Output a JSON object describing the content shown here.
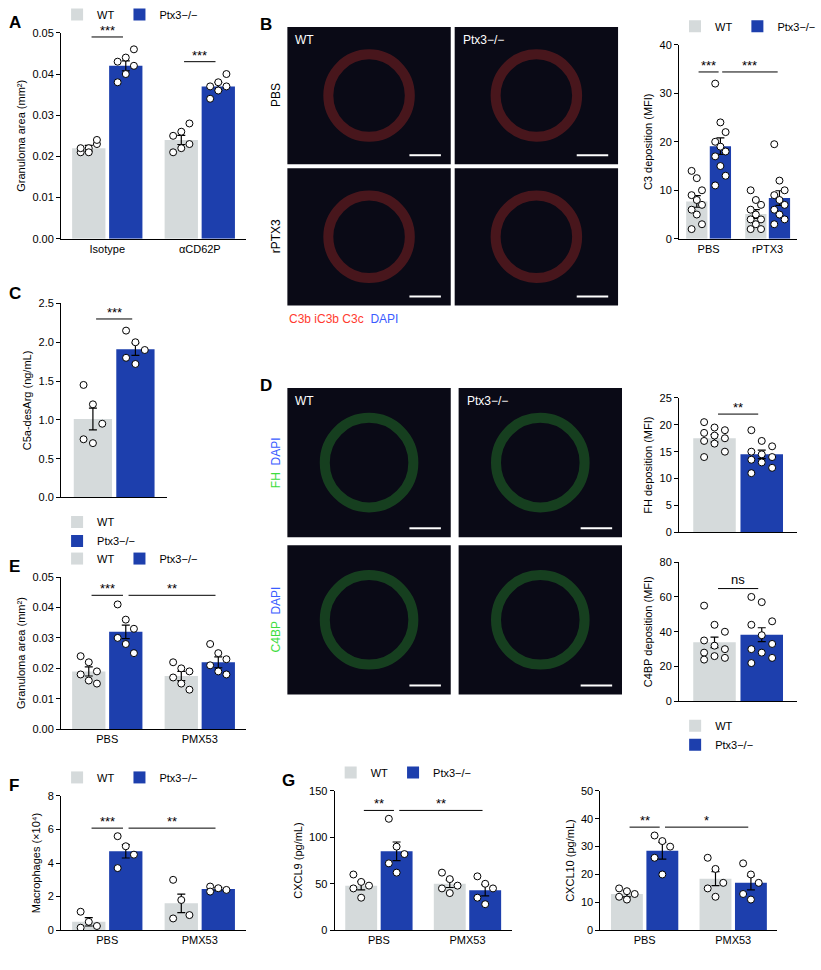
{
  "micrographs": [
    {
      "panel": "B",
      "columns": [
        "WT",
        "Ptx3−/−"
      ],
      "rows": [
        {
          "label": "PBS"
        },
        {
          "label": "rPTX3"
        }
      ],
      "stains": [
        {
          "text": "C3b iC3b C3c",
          "color": "#ff3b30"
        },
        {
          "text": "DAPI",
          "color": "#3a5cff"
        }
      ]
    },
    {
      "panel": "D",
      "columns": [
        "WT",
        "Ptx3−/−"
      ],
      "rows": [
        {
          "stains": [
            {
              "text": "FH",
              "color": "#3ddc3d"
            },
            {
              "text": "DAPI",
              "color": "#3a5cff"
            }
          ]
        },
        {
          "stains": [
            {
              "text": "C4BP",
              "color": "#3ddc3d"
            },
            {
              "text": "DAPI",
              "color": "#3a5cff"
            }
          ]
        }
      ]
    }
  ],
  "chart_data": [
    {
      "panel": "A",
      "type": "bar",
      "categories": [
        "Isotype",
        "αCD62P"
      ],
      "ylabel": "Granuloma area (mm²)",
      "ylim": [
        0,
        0.05
      ],
      "yticks": [
        {
          "value": 0,
          "label": "0.00"
        },
        0.01,
        0.02,
        0.03,
        0.04,
        0.05
      ],
      "legend": "top",
      "series": [
        {
          "name": "WT",
          "color": "#d5dadb",
          "values": [
            0.022,
            0.024
          ],
          "errors": [
            0.0007,
            0.0011
          ],
          "points": [
            [
              0.021,
              0.022,
              0.023,
              0.022,
              0.021,
              0.024
            ],
            [
              0.021,
              0.022,
              0.023,
              0.025,
              0.026,
              0.028
            ]
          ]
        },
        {
          "name": "Ptx3−/−",
          "color": "#1d3fad",
          "values": [
            0.042,
            0.037
          ],
          "errors": [
            0.0012,
            0.001
          ],
          "points": [
            [
              0.038,
              0.04,
              0.042,
              0.043,
              0.044,
              0.046
            ],
            [
              0.034,
              0.036,
              0.037,
              0.037,
              0.038,
              0.04
            ]
          ]
        }
      ],
      "significance": [
        {
          "from": [
            0,
            0
          ],
          "to": [
            0,
            1
          ],
          "label": "***"
        },
        {
          "from": [
            1,
            0
          ],
          "to": [
            1,
            1
          ],
          "label": "***"
        }
      ]
    },
    {
      "type": "bar",
      "categories": [
        "PBS",
        "rPTX3"
      ],
      "ylabel": "C3 deposition (MFI)",
      "ylim": [
        0,
        40
      ],
      "yticks": [
        0,
        10,
        20,
        30,
        40
      ],
      "legend": "top",
      "series": [
        {
          "name": "WT",
          "color": "#d5dadb",
          "values": [
            7.7,
            5.1
          ],
          "errors": [
            1.2,
            0.9
          ],
          "points": [
            [
              14,
              12.5,
              10,
              9,
              8,
              7,
              6,
              5,
              3,
              2
            ],
            [
              10,
              8,
              7,
              6,
              5,
              4,
              4,
              3,
              2,
              2
            ]
          ]
        },
        {
          "name": "Ptx3−/−",
          "color": "#1d3fad",
          "values": [
            19.1,
            8.4
          ],
          "errors": [
            1.7,
            1.5
          ],
          "points": [
            [
              32,
              24,
              22,
              20,
              19,
              18,
              17,
              15,
              13,
              11
            ],
            [
              19.5,
              12,
              10,
              9,
              8,
              7,
              6,
              5,
              4,
              3
            ]
          ]
        }
      ],
      "significance": [
        {
          "from": [
            0,
            0
          ],
          "to": [
            0,
            1
          ],
          "label": "***"
        },
        {
          "from": [
            0,
            1
          ],
          "to": [
            1,
            1
          ],
          "label": "***"
        }
      ]
    },
    {
      "panel": "C",
      "type": "bar",
      "categories": [
        null
      ],
      "ylabel": "C5a-desArg (ng/mL)",
      "ylim": [
        0,
        2.5
      ],
      "yticks": [
        {
          "value": 0,
          "label": "0.0"
        },
        0.5,
        {
          "value": 1,
          "label": "1.0"
        },
        1.5,
        {
          "value": 2,
          "label": "2.0"
        },
        2.5
      ],
      "legend": "bottom",
      "tick_labels": "y",
      "series": [
        {
          "name": "WT",
          "color": "#d5dadb",
          "values": [
            1.01
          ],
          "errors": [
            0.14
          ],
          "points": [
            [
              1.45,
              1.2,
              0.95,
              0.75,
              0.7
            ]
          ]
        },
        {
          "name": "Ptx3−/−",
          "color": "#1d3fad",
          "values": [
            1.91
          ],
          "errors": [
            0.08
          ],
          "points": [
            [
              2.15,
              2.0,
              1.9,
              1.8,
              1.72
            ]
          ]
        }
      ],
      "significance": [
        {
          "from": [
            0,
            0
          ],
          "to": [
            0,
            1
          ],
          "label": "***"
        }
      ]
    },
    {
      "type": "bar",
      "categories": [
        null
      ],
      "ylabel": "FH deposition (MFI)",
      "ylim": [
        0,
        25
      ],
      "yticks": [
        0,
        5,
        10,
        15,
        20,
        25
      ],
      "tick_labels": "y",
      "series": [
        {
          "name": "WT",
          "color": "#d5dadb",
          "values": [
            17.5
          ],
          "errors": [
            0.7
          ],
          "points": [
            [
              20.5,
              19.5,
              19,
              18.5,
              18,
              17.5,
              17,
              16.5,
              15,
              14
            ]
          ]
        },
        {
          "name": "Ptx3−/−",
          "color": "#1d3fad",
          "values": [
            14.5
          ],
          "errors": [
            0.8
          ],
          "points": [
            [
              19,
              17,
              16,
              15,
              14.5,
              14,
              13.5,
              13,
              12,
              11
            ]
          ]
        }
      ],
      "significance": [
        {
          "from": [
            0,
            0
          ],
          "to": [
            0,
            1
          ],
          "label": "**"
        }
      ]
    },
    {
      "type": "bar",
      "categories": [
        null
      ],
      "ylabel": "C4BP deposition (MFI)",
      "ylim": [
        0,
        80
      ],
      "yticks": [
        0,
        20,
        40,
        60,
        80
      ],
      "tick_labels": "y",
      "legend": "bottom",
      "series": [
        {
          "name": "WT",
          "color": "#d5dadb",
          "values": [
            33.9
          ],
          "errors": [
            3
          ],
          "points": [
            [
              55,
              44,
              40,
              35,
              32,
              30,
              28,
              26,
              25,
              24
            ]
          ]
        },
        {
          "name": "Ptx3−/−",
          "color": "#1d3fad",
          "values": [
            38.3
          ],
          "errors": [
            4
          ],
          "points": [
            [
              60,
              57,
              46,
              44,
              38,
              33,
              30,
              28,
              25,
              22
            ]
          ]
        }
      ],
      "significance": [
        {
          "from": [
            0,
            0
          ],
          "to": [
            0,
            1
          ],
          "label": "ns"
        }
      ]
    },
    {
      "panel": "E",
      "type": "bar",
      "categories": [
        "PBS",
        "PMX53"
      ],
      "ylabel": "Granuloma area (mm²)",
      "ylim": [
        0,
        0.05
      ],
      "yticks": [
        {
          "value": 0,
          "label": "0.00"
        },
        0.01,
        0.02,
        0.03,
        0.04,
        0.05
      ],
      "legend": "top",
      "series": [
        {
          "name": "WT",
          "color": "#d5dadb",
          "values": [
            0.019,
            0.0175
          ],
          "errors": [
            0.0015,
            0.0015
          ],
          "points": [
            [
              0.024,
              0.022,
              0.019,
              0.018,
              0.016,
              0.015
            ],
            [
              0.022,
              0.02,
              0.019,
              0.017,
              0.015,
              0.013
            ]
          ]
        },
        {
          "name": "Ptx3−/−",
          "color": "#1d3fad",
          "values": [
            0.032,
            0.022
          ],
          "errors": [
            0.0022,
            0.0018
          ],
          "points": [
            [
              0.041,
              0.036,
              0.033,
              0.03,
              0.028,
              0.025
            ],
            [
              0.028,
              0.025,
              0.023,
              0.021,
              0.019,
              0.018
            ]
          ]
        }
      ],
      "significance": [
        {
          "from": [
            0,
            0
          ],
          "to": [
            0,
            1
          ],
          "label": "***"
        },
        {
          "from": [
            0,
            1
          ],
          "to": [
            1,
            1
          ],
          "label": "**"
        }
      ]
    },
    {
      "panel": "F",
      "type": "bar",
      "categories": [
        "PBS",
        "PMX53"
      ],
      "ylabel": "Macrophages (×10⁴)",
      "ylim": [
        0,
        8
      ],
      "yticks": [
        0,
        2,
        4,
        6,
        8
      ],
      "legend": "top",
      "series": [
        {
          "name": "WT",
          "color": "#d5dadb",
          "values": [
            0.5,
            1.6
          ],
          "errors": [
            0.25,
            0.55
          ],
          "points": [
            [
              1.1,
              0.5,
              0.25,
              0.15
            ],
            [
              3.0,
              1.8,
              0.9,
              0.7
            ]
          ]
        },
        {
          "name": "Ptx3−/−",
          "color": "#1d3fad",
          "values": [
            4.7,
            2.45
          ],
          "errors": [
            0.4,
            0.1
          ],
          "points": [
            [
              5.6,
              5.0,
              4.5,
              3.7
            ],
            [
              2.6,
              2.5,
              2.4,
              2.3
            ]
          ]
        }
      ],
      "significance": [
        {
          "from": [
            0,
            0
          ],
          "to": [
            0,
            1
          ],
          "label": "***"
        },
        {
          "from": [
            0,
            1
          ],
          "to": [
            1,
            1
          ],
          "label": "**"
        }
      ]
    },
    {
      "panel": "G",
      "type": "bar",
      "categories": [
        "PBS",
        "PMX53"
      ],
      "ylabel": "CXCL9 (pg/mL)",
      "ylim": [
        0,
        150
      ],
      "yticks": [
        0,
        50,
        100,
        150
      ],
      "legend": "top",
      "series": [
        {
          "name": "WT",
          "color": "#d5dadb",
          "values": [
            48,
            50
          ],
          "errors": [
            4.5,
            4
          ],
          "points": [
            [
              60,
              52,
              48,
              45,
              35
            ],
            [
              62,
              55,
              48,
              45,
              40
            ]
          ]
        },
        {
          "name": "Ptx3−/−",
          "color": "#1d3fad",
          "values": [
            85,
            43
          ],
          "errors": [
            10,
            6
          ],
          "points": [
            [
              120,
              90,
              82,
              72,
              62
            ],
            [
              58,
              50,
              45,
              35,
              28
            ]
          ]
        }
      ],
      "significance": [
        {
          "from": [
            0,
            0
          ],
          "to": [
            0,
            1
          ],
          "label": "**"
        },
        {
          "from": [
            0,
            1
          ],
          "to": [
            1,
            1
          ],
          "label": "**"
        }
      ]
    },
    {
      "type": "bar",
      "categories": [
        "PBS",
        "PMX53"
      ],
      "ylabel": "CXCL10 (pg/mL)",
      "ylim": [
        0,
        50
      ],
      "yticks": [
        0,
        10,
        20,
        30,
        40,
        50
      ],
      "series": [
        {
          "name": "WT",
          "color": "#d5dadb",
          "values": [
            13,
            18.5
          ],
          "errors": [
            1,
            2.5
          ],
          "points": [
            [
              15,
              14,
              13,
              12,
              11
            ],
            [
              26,
              22,
              17,
              15,
              12
            ]
          ]
        },
        {
          "name": "Ptx3−/−",
          "color": "#1d3fad",
          "values": [
            28.5,
            17
          ],
          "errors": [
            3,
            2.5
          ],
          "points": [
            [
              34,
              32,
              30,
              26,
              20
            ],
            [
              24,
              20,
              17,
              13,
              11
            ]
          ]
        }
      ],
      "significance": [
        {
          "from": [
            0,
            0
          ],
          "to": [
            0,
            1
          ],
          "label": "**"
        },
        {
          "from": [
            0,
            1
          ],
          "to": [
            1,
            1
          ],
          "label": "*"
        }
      ]
    }
  ]
}
